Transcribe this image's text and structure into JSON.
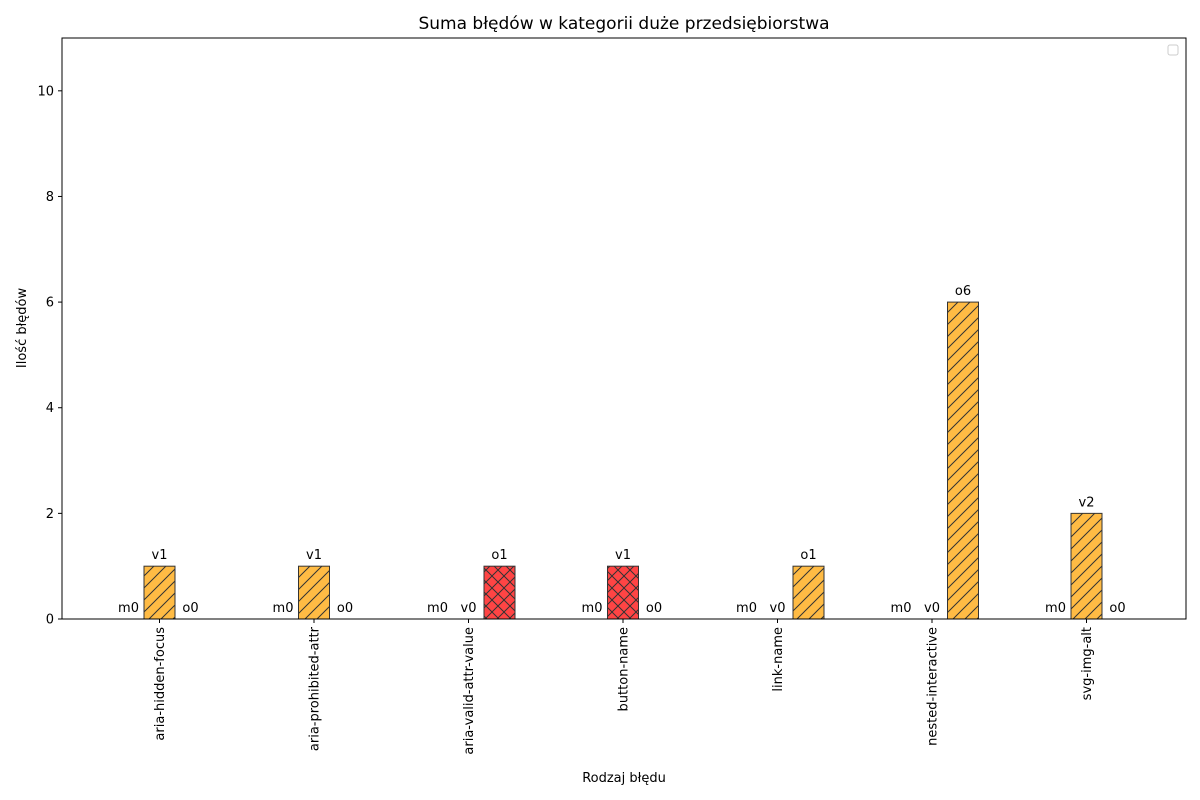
{
  "chart_data": {
    "type": "bar",
    "title": "Suma błędów w kategorii duże przedsiębiorstwa",
    "xlabel": "Rodzaj błędu",
    "ylabel": "Ilość błędów",
    "ylim": [
      0,
      11
    ],
    "yticks": [
      0,
      2,
      4,
      6,
      8,
      10
    ],
    "grid": false,
    "legend": "top-right",
    "categories": [
      "aria-hidden-focus",
      "aria-prohibited-attr",
      "aria-valid-attr-value",
      "button-name",
      "link-name",
      "nested-interactive",
      "svg-img-alt"
    ],
    "series": [
      {
        "prefix": "m",
        "values": [
          0,
          0,
          0,
          0,
          0,
          0,
          0
        ],
        "labels": [
          "m0",
          "m0",
          "m0",
          "m0",
          "m0",
          "m0",
          "m0"
        ]
      },
      {
        "prefix": "v",
        "values": [
          1,
          1,
          0,
          1,
          0,
          0,
          2
        ],
        "labels": [
          "v1",
          "v1",
          "v0",
          "v1",
          "v0",
          "v0",
          "v2"
        ]
      },
      {
        "prefix": "o",
        "values": [
          0,
          0,
          1,
          0,
          1,
          6,
          0
        ],
        "labels": [
          "o0",
          "o0",
          "o1",
          "o0",
          "o1",
          "o6",
          "o0"
        ]
      }
    ],
    "bar_styles": {
      "v": [
        [
          "#ffbb44",
          "diag"
        ],
        [
          "#ffbb44",
          "diag"
        ],
        [
          "#ffbb44",
          "diag"
        ],
        [
          "#ff4444",
          "cross"
        ],
        [
          "#ffbb44",
          "diag"
        ],
        [
          "#ffbb44",
          "diag"
        ],
        [
          "#ffbb44",
          "diag"
        ]
      ],
      "o": [
        [
          "#ffbb44",
          "diag"
        ],
        [
          "#ffbb44",
          "diag"
        ],
        [
          "#ff4444",
          "cross"
        ],
        [
          "#ffbb44",
          "diag"
        ],
        [
          "#ffbb44",
          "diag"
        ],
        [
          "#ffbb44",
          "diag"
        ],
        [
          "#ffbb44",
          "diag"
        ]
      ],
      "m": [
        [
          "#ffbb44",
          "diag"
        ],
        [
          "#ffbb44",
          "diag"
        ],
        [
          "#ffbb44",
          "diag"
        ],
        [
          "#ffbb44",
          "diag"
        ],
        [
          "#ffbb44",
          "diag"
        ],
        [
          "#ffbb44",
          "diag"
        ],
        [
          "#ffbb44",
          "diag"
        ]
      ]
    },
    "colors": {
      "orange": "#ffbb44",
      "red": "#ff4444",
      "edge": "#333333"
    }
  }
}
